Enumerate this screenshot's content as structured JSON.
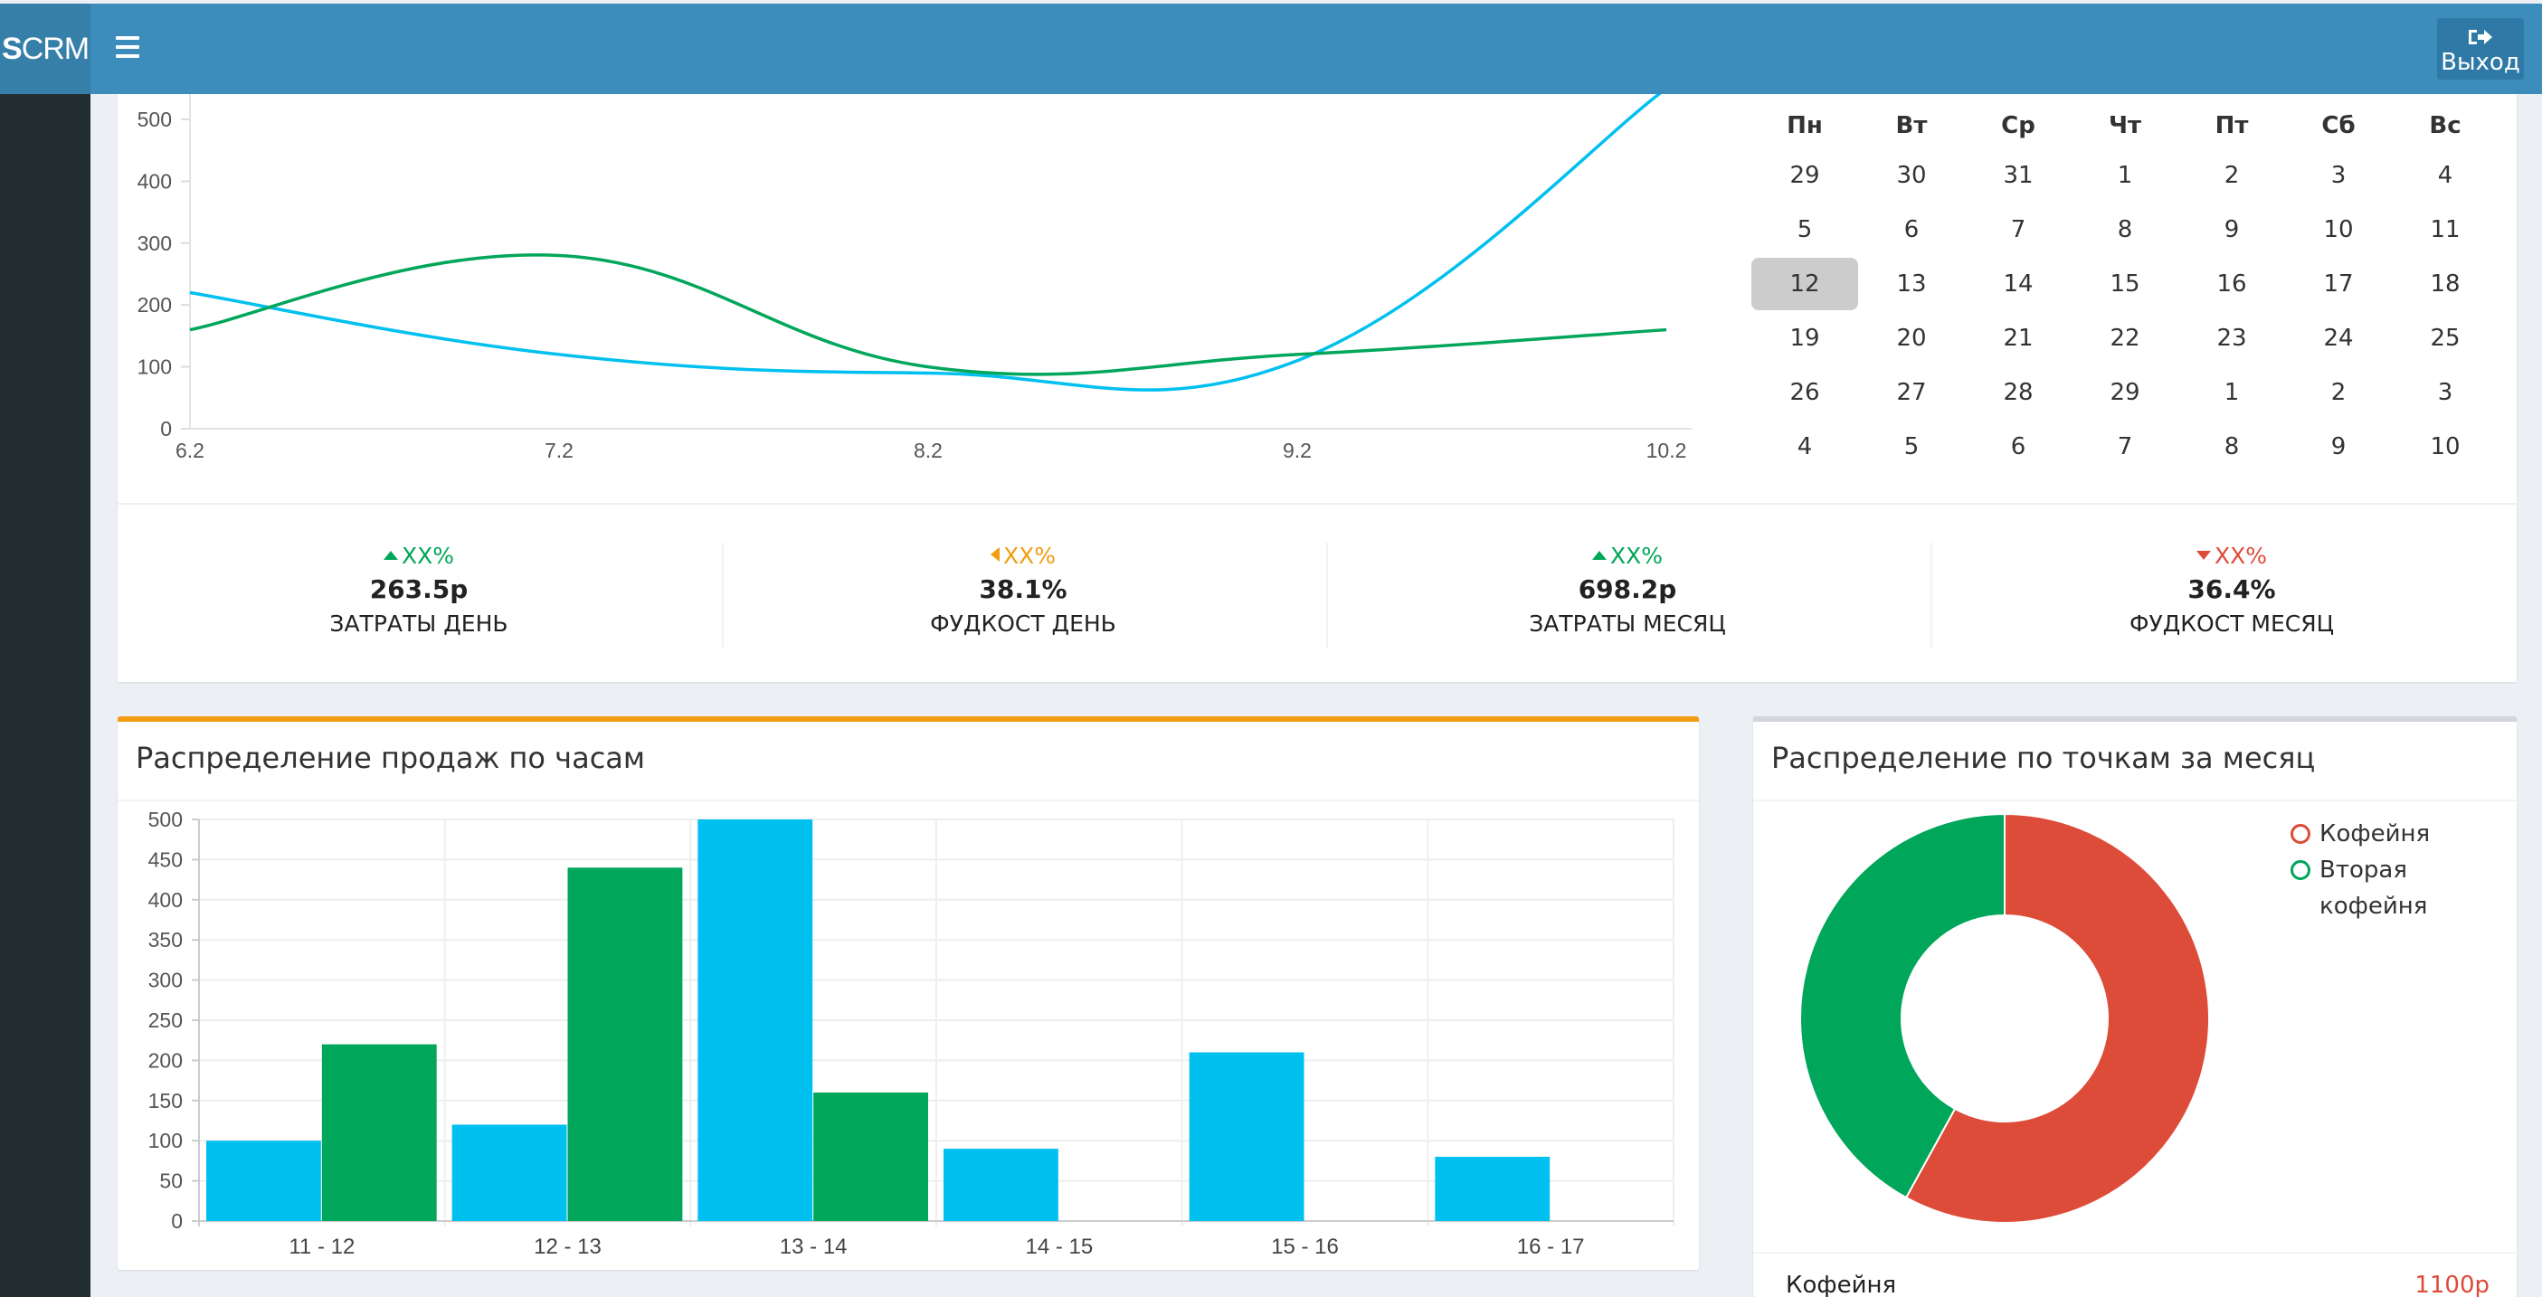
{
  "app": {
    "logo_bold": "S",
    "logo_rest": "CRM",
    "logout_label": "Выход"
  },
  "calendar": {
    "weekdays": [
      "Пн",
      "Вт",
      "Ср",
      "Чт",
      "Пт",
      "Сб",
      "Вс"
    ],
    "weeks": [
      [
        "29",
        "30",
        "31",
        "1",
        "2",
        "3",
        "4"
      ],
      [
        "5",
        "6",
        "7",
        "8",
        "9",
        "10",
        "11"
      ],
      [
        "12",
        "13",
        "14",
        "15",
        "16",
        "17",
        "18"
      ],
      [
        "19",
        "20",
        "21",
        "22",
        "23",
        "24",
        "25"
      ],
      [
        "26",
        "27",
        "28",
        "29",
        "1",
        "2",
        "3"
      ],
      [
        "4",
        "5",
        "6",
        "7",
        "8",
        "9",
        "10"
      ]
    ],
    "selected": "12"
  },
  "stats": [
    {
      "pct": "XX%",
      "trend": "up",
      "value": "263.5р",
      "label": "ЗАТРАТЫ ДЕНЬ",
      "color": "#00a65a"
    },
    {
      "pct": "XX%",
      "trend": "left",
      "value": "38.1%",
      "label": "ФУДКОСТ ДЕНЬ",
      "color": "#f39c12"
    },
    {
      "pct": "XX%",
      "trend": "up",
      "value": "698.2р",
      "label": "ЗАТРАТЫ МЕСЯЦ",
      "color": "#00a65a"
    },
    {
      "pct": "XX%",
      "trend": "down",
      "value": "36.4%",
      "label": "ФУДКОСТ МЕСЯЦ",
      "color": "#dd4b39"
    }
  ],
  "sales_box": {
    "title": "Распределение продаж по часам"
  },
  "points_box": {
    "title": "Распределение по точкам за месяц",
    "footer": {
      "name": "Кофейня",
      "amount": "1100р",
      "amount_color": "#dd4b39"
    }
  },
  "colors": {
    "blue": "#00c0ef",
    "green": "#00a65a",
    "red": "#dd4b39",
    "header": "#3c8dbc"
  },
  "chart_data": [
    {
      "type": "line",
      "title": "",
      "x": [
        "6.2",
        "7.2",
        "8.2",
        "9.2",
        "10.2"
      ],
      "ylim": [
        0,
        500
      ],
      "yticks": [
        0,
        100,
        200,
        300,
        400,
        500
      ],
      "series": [
        {
          "name": "series-blue",
          "color": "#00c0ef",
          "values": [
            220,
            120,
            90,
            110,
            550
          ]
        },
        {
          "name": "series-green",
          "color": "#00a65a",
          "values": [
            160,
            280,
            100,
            120,
            160
          ]
        }
      ]
    },
    {
      "type": "bar",
      "title": "Распределение продаж по часам",
      "categories": [
        "11 - 12",
        "12 - 13",
        "13 - 14",
        "14 - 15",
        "15 - 16",
        "16 - 17"
      ],
      "ylim": [
        0,
        500
      ],
      "yticks": [
        0,
        50,
        100,
        150,
        200,
        250,
        300,
        350,
        400,
        450,
        500
      ],
      "series": [
        {
          "name": "series-blue",
          "color": "#00c0ef",
          "values": [
            100,
            120,
            500,
            90,
            210,
            80
          ]
        },
        {
          "name": "series-green",
          "color": "#00a65a",
          "values": [
            220,
            440,
            160,
            0,
            0,
            0
          ]
        }
      ]
    },
    {
      "type": "pie",
      "title": "Распределение по точкам за месяц",
      "labels": [
        "Кофейня",
        "Вторая кофейня"
      ],
      "values": [
        58,
        42
      ],
      "colors": [
        "#dd4b39",
        "#00a65a"
      ]
    }
  ]
}
